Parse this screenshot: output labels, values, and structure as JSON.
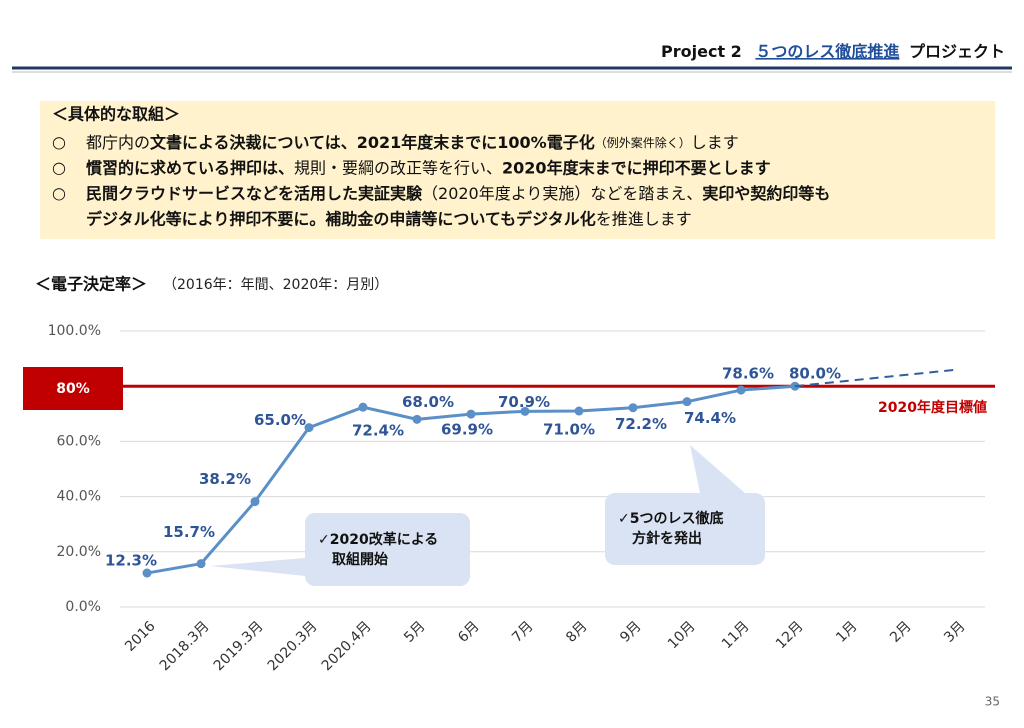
{
  "header": {
    "project": "Project 2",
    "theme": "５つのレス徹底推進",
    "suffix": "プロジェクト"
  },
  "summary": {
    "title": "＜具体的な取組＞",
    "lines": [
      {
        "bullet": "○",
        "parts": [
          {
            "text": "都庁内の",
            "style": "normal"
          },
          {
            "text": "文書による決裁については、2021年度末までに100%電子化",
            "style": "bold"
          },
          {
            "text": "（例外案件除く）",
            "style": "small"
          },
          {
            "text": "します",
            "style": "normal"
          }
        ]
      },
      {
        "bullet": "○",
        "parts": [
          {
            "text": "慣習的に求めている押印は、",
            "style": "bold"
          },
          {
            "text": "規則・要綱の改正等を行い、",
            "style": "normal"
          },
          {
            "text": "2020年度末までに押印不要とします",
            "style": "bold"
          }
        ]
      },
      {
        "bullet": "○",
        "parts": [
          {
            "text": "民間クラウドサービスなどを活用した実証実験",
            "style": "bold"
          },
          {
            "text": "（2020年度より実施）などを踏まえ、",
            "style": "normal"
          },
          {
            "text": "実印や契約印等も",
            "style": "bold"
          }
        ]
      },
      {
        "parts": [
          {
            "text": "デジタル化等により押印不要に。補助金の申請等についてもデジタル化",
            "style": "bold"
          },
          {
            "text": "を推進します",
            "style": "normal"
          }
        ]
      }
    ]
  },
  "chart_data": {
    "type": "line",
    "title": "＜電子決定率＞",
    "subtitle": "（2016年：年間、2020年：月別）",
    "categories": [
      "2016",
      "2018.3月",
      "2019.3月",
      "2020.3月",
      "2020.4月",
      "5月",
      "6月",
      "7月",
      "8月",
      "9月",
      "10月",
      "11月",
      "12月",
      "1月",
      "2月",
      "3月"
    ],
    "series": [
      {
        "color": "#5a8fc7",
        "values": [
          12.3,
          15.7,
          38.2,
          65.0,
          72.4,
          68.0,
          69.9,
          70.9,
          71.0,
          72.2,
          74.4,
          78.6,
          80.0,
          null,
          null,
          null
        ],
        "value_labels": [
          "12.3%",
          "15.7%",
          "38.2%",
          "65.0%",
          "72.4%",
          "68.0%",
          "69.9%",
          "70.9%",
          "71.0%",
          "72.2%",
          "74.4%",
          "78.6%",
          "80.0%",
          null,
          null,
          null
        ]
      },
      {
        "color": "#2f5f9e",
        "dashed": true,
        "values": [
          null,
          null,
          null,
          null,
          null,
          null,
          null,
          null,
          null,
          null,
          null,
          null,
          80.0,
          82,
          84,
          86
        ]
      }
    ],
    "ylim": [
      0,
      100
    ],
    "yticks": [
      {
        "value": 0,
        "label": "0.0%"
      },
      {
        "value": 20,
        "label": "20.0%"
      },
      {
        "value": 40,
        "label": "40.0%"
      },
      {
        "value": 60,
        "label": "60.0%"
      },
      {
        "value": 100,
        "label": "100.0%"
      }
    ],
    "grid": true,
    "target": {
      "value": 80,
      "label": "80%",
      "name": "2020年度目標値",
      "color": "#c00000"
    },
    "annotations": [
      {
        "lines": [
          "✓2020改革による",
          "取組開始"
        ]
      },
      {
        "lines": [
          "✓5つのレス徹底",
          "方針を発出"
        ]
      }
    ]
  },
  "page_number": "35"
}
